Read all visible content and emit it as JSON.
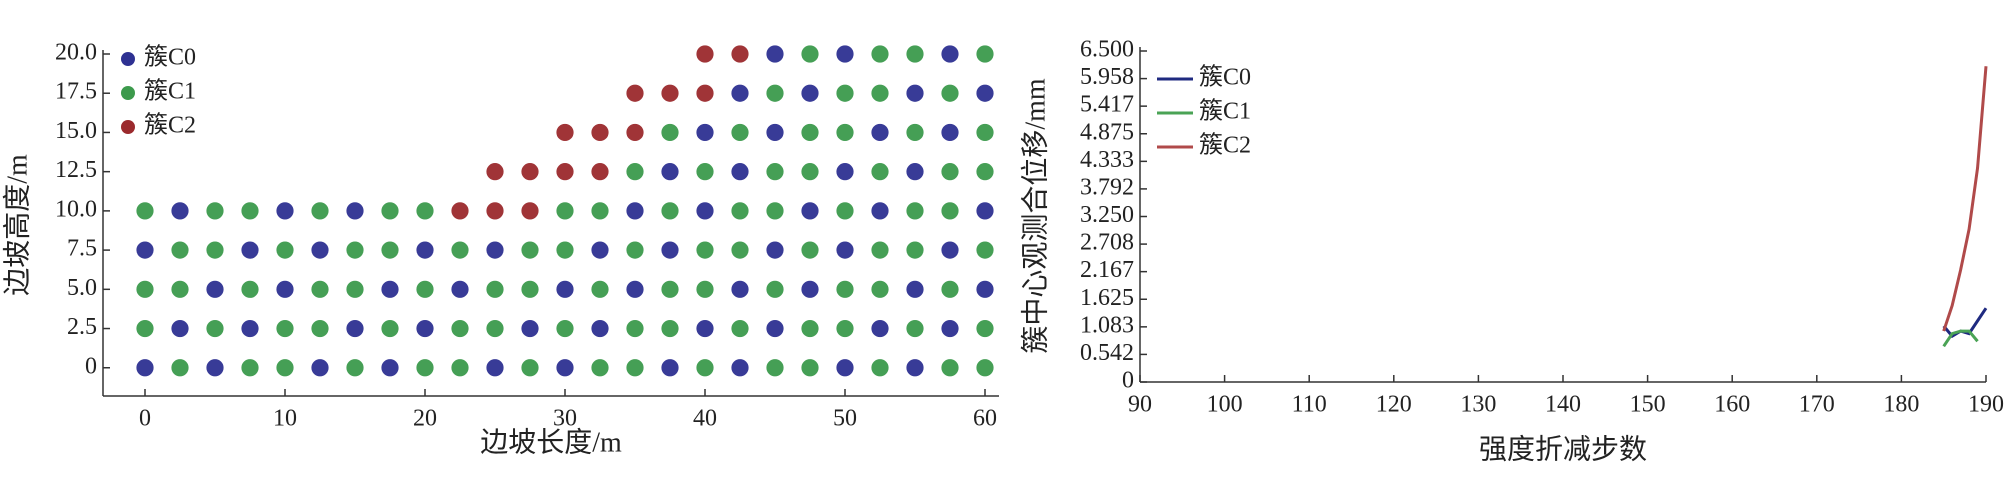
{
  "chart_data": [
    {
      "type": "scatter",
      "xlabel": "边坡长度/m",
      "ylabel": "边坡高度/m",
      "xlim": [
        -3,
        61
      ],
      "ylim": [
        -1.8,
        20
      ],
      "xticks": [
        0,
        10,
        20,
        30,
        40,
        50,
        60
      ],
      "yticks": [
        0,
        2.5,
        {
          "value": 5,
          "label": "5.0"
        },
        7.5,
        {
          "value": 10,
          "label": "10.0"
        },
        12.5,
        {
          "value": 15,
          "label": "15.0"
        },
        17.5,
        {
          "value": 20,
          "label": "20.0"
        }
      ],
      "legend": "upper left",
      "series": [
        {
          "name": "簇C0",
          "color": "#2e3192",
          "x": [
            0,
            0,
            2.5,
            2.5,
            5,
            5,
            7.5,
            7.5,
            10,
            10,
            12.5,
            12.5,
            15,
            15,
            17.5,
            17.5,
            20,
            20,
            22.5,
            25,
            25,
            27.5,
            30,
            30,
            32.5,
            32.5,
            35,
            35,
            37.5,
            37.5,
            37.5,
            40,
            40,
            40,
            42.5,
            42.5,
            42.5,
            42.5,
            45,
            45,
            45,
            45,
            47.5,
            47.5,
            47.5,
            50,
            50,
            50,
            50,
            52.5,
            52.5,
            52.5,
            55,
            55,
            55,
            55,
            57.5,
            57.5,
            57.5,
            57.5,
            60,
            60,
            60
          ],
          "values": [
            0,
            7.5,
            2.5,
            10,
            0,
            5,
            2.5,
            7.5,
            5,
            10,
            0,
            7.5,
            2.5,
            10,
            0,
            5,
            2.5,
            7.5,
            5,
            0,
            7.5,
            2.5,
            0,
            5,
            2.5,
            7.5,
            5,
            10,
            0,
            7.5,
            12.5,
            2.5,
            10,
            15,
            0,
            5,
            12.5,
            17.5,
            2.5,
            7.5,
            15,
            20,
            5,
            10,
            17.5,
            0,
            7.5,
            12.5,
            20,
            2.5,
            10,
            15,
            0,
            5,
            12.5,
            17.5,
            2.5,
            7.5,
            15,
            20,
            5,
            10,
            17.5
          ]
        },
        {
          "name": "簇C1",
          "color": "#3c9a4c",
          "x": [
            0,
            0,
            0,
            2.5,
            2.5,
            2.5,
            5,
            5,
            5,
            7.5,
            7.5,
            7.5,
            10,
            10,
            10,
            12.5,
            12.5,
            12.5,
            15,
            15,
            15,
            17.5,
            17.5,
            17.5,
            20,
            20,
            20,
            22.5,
            22.5,
            22.5,
            25,
            25,
            27.5,
            27.5,
            27.5,
            30,
            30,
            30,
            32.5,
            32.5,
            32.5,
            35,
            35,
            35,
            35,
            37.5,
            37.5,
            37.5,
            37.5,
            40,
            40,
            40,
            40,
            42.5,
            42.5,
            42.5,
            42.5,
            45,
            45,
            45,
            45,
            45,
            47.5,
            47.5,
            47.5,
            47.5,
            47.5,
            47.5,
            50,
            50,
            50,
            50,
            50,
            52.5,
            52.5,
            52.5,
            52.5,
            52.5,
            52.5,
            55,
            55,
            55,
            55,
            55,
            57.5,
            57.5,
            57.5,
            57.5,
            57.5,
            60,
            60,
            60,
            60,
            60,
            60
          ],
          "values": [
            2.5,
            5,
            10,
            0,
            5,
            7.5,
            2.5,
            7.5,
            10,
            0,
            5,
            10,
            0,
            2.5,
            7.5,
            2.5,
            5,
            10,
            0,
            5,
            7.5,
            2.5,
            7.5,
            10,
            0,
            5,
            10,
            0,
            2.5,
            7.5,
            2.5,
            5,
            0,
            5,
            7.5,
            2.5,
            7.5,
            10,
            0,
            5,
            10,
            0,
            2.5,
            7.5,
            12.5,
            2.5,
            5,
            10,
            15,
            0,
            5,
            7.5,
            12.5,
            2.5,
            7.5,
            10,
            15,
            0,
            5,
            10,
            12.5,
            17.5,
            0,
            2.5,
            7.5,
            12.5,
            15,
            20,
            2.5,
            5,
            10,
            15,
            17.5,
            0,
            5,
            7.5,
            12.5,
            17.5,
            20,
            2.5,
            7.5,
            10,
            15,
            20,
            0,
            5,
            10,
            12.5,
            17.5,
            0,
            2.5,
            7.5,
            12.5,
            15,
            20
          ]
        },
        {
          "name": "簇C2",
          "color": "#9b2a2d",
          "x": [
            22.5,
            25,
            25,
            27.5,
            27.5,
            30,
            30,
            32.5,
            32.5,
            35,
            35,
            37.5,
            40,
            40,
            42.5
          ],
          "values": [
            10,
            10,
            12.5,
            10,
            12.5,
            12.5,
            15,
            12.5,
            15,
            15,
            17.5,
            17.5,
            17.5,
            20,
            20
          ]
        }
      ]
    },
    {
      "type": "line",
      "xlabel": "强度折减步数",
      "ylabel": "簇中心观测合位移/mm",
      "xlim": [
        90,
        190
      ],
      "ylim": [
        0,
        6.5
      ],
      "xticks": [
        90,
        100,
        110,
        120,
        130,
        140,
        150,
        160,
        170,
        180,
        190
      ],
      "yticks": [
        0,
        0.542,
        1.083,
        1.625,
        2.167,
        2.708,
        {
          "value": 3.25,
          "label": "3.250"
        },
        3.792,
        4.333,
        4.875,
        5.417,
        5.958,
        {
          "value": 6.5,
          "label": "6.500"
        }
      ],
      "legend": "upper left",
      "x": [
        185,
        186,
        187,
        188,
        189,
        190
      ],
      "series": [
        {
          "name": "簇C0",
          "color": "#1f2a80",
          "values": [
            1.1,
            0.9,
            1.0,
            0.95,
            1.2,
            1.45
          ]
        },
        {
          "name": "簇C1",
          "color": "#4aa355",
          "values": [
            0.7,
            0.95,
            1.0,
            1.0,
            0.8,
            null
          ]
        },
        {
          "name": "簇C2",
          "color": "#b04a4a",
          "values": [
            1.0,
            1.5,
            2.2,
            3.0,
            4.2,
            6.2
          ]
        }
      ]
    }
  ]
}
